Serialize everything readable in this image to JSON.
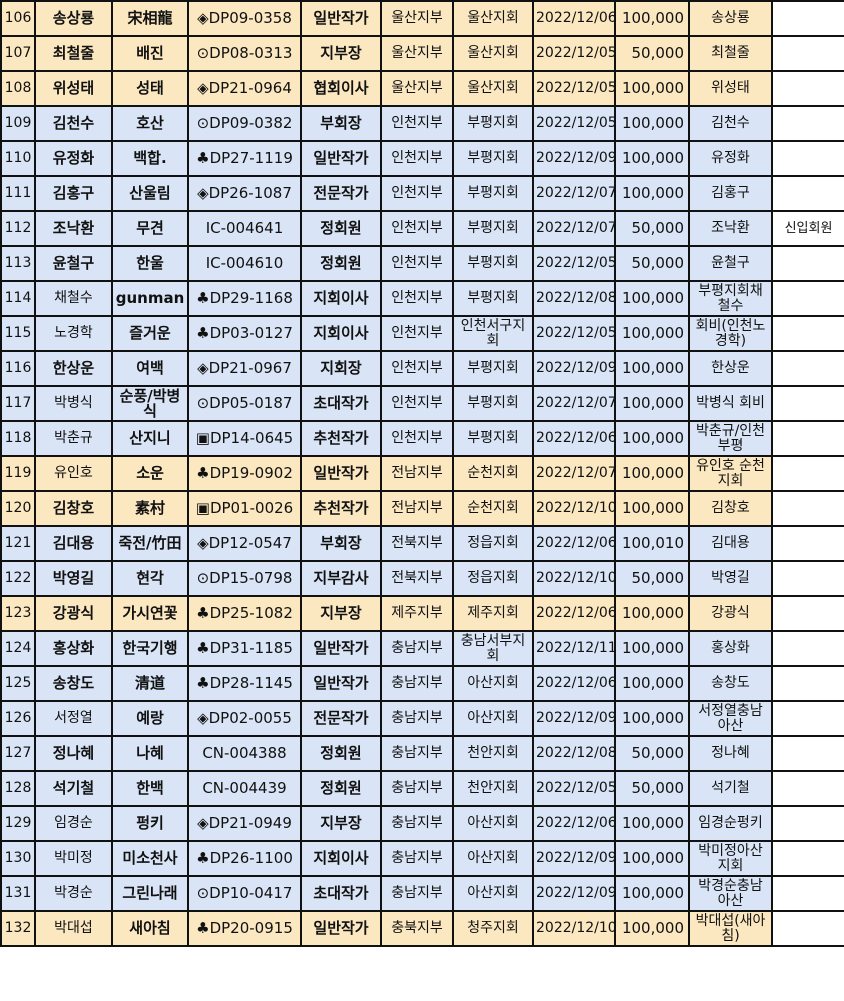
{
  "colors": {
    "yellow": "#fce8c0",
    "blue": "#d9e5f6",
    "note": "#ffffff"
  },
  "rows": [
    {
      "no": "106",
      "name": "송상룡",
      "pen": "宋相龍",
      "code": "◈DP09-0358",
      "rank": "일반작가",
      "branch": "울산지부",
      "chapter": "울산지회",
      "date": "2022/12/06",
      "amount": "100,000",
      "depositor": "송상룡",
      "note": "",
      "color": "yellow",
      "bold": true
    },
    {
      "no": "107",
      "name": "최철줄",
      "pen": "배진",
      "code": "⊙DP08-0313",
      "rank": "지부장",
      "branch": "울산지부",
      "chapter": "울산지회",
      "date": "2022/12/05",
      "amount": "50,000",
      "depositor": "최철줄",
      "note": "",
      "color": "yellow",
      "bold": true
    },
    {
      "no": "108",
      "name": "위성태",
      "pen": "성태",
      "code": "◈DP21-0964",
      "rank": "협회이사",
      "branch": "울산지부",
      "chapter": "울산지회",
      "date": "2022/12/05",
      "amount": "100,000",
      "depositor": "위성태",
      "note": "",
      "color": "yellow",
      "bold": true
    },
    {
      "no": "109",
      "name": "김천수",
      "pen": "호산",
      "code": "⊙DP09-0382",
      "rank": "부회장",
      "branch": "인천지부",
      "chapter": "부평지회",
      "date": "2022/12/05",
      "amount": "100,000",
      "depositor": "김천수",
      "note": "",
      "color": "blue",
      "bold": true
    },
    {
      "no": "110",
      "name": "유정화",
      "pen": "백합.",
      "code": "♣DP27-1119",
      "rank": "일반작가",
      "branch": "인천지부",
      "chapter": "부평지회",
      "date": "2022/12/09",
      "amount": "100,000",
      "depositor": "유정화",
      "note": "",
      "color": "blue",
      "bold": true
    },
    {
      "no": "111",
      "name": "김홍구",
      "pen": "산울림",
      "code": "◈DP26-1087",
      "rank": "전문작가",
      "branch": "인천지부",
      "chapter": "부평지회",
      "date": "2022/12/07",
      "amount": "100,000",
      "depositor": "김홍구",
      "note": "",
      "color": "blue",
      "bold": true
    },
    {
      "no": "112",
      "name": "조낙환",
      "pen": "무견",
      "code": "IC-004641",
      "rank": "정회원",
      "branch": "인천지부",
      "chapter": "부평지회",
      "date": "2022/12/07",
      "amount": "50,000",
      "depositor": "조낙환",
      "note": "신입회원",
      "color": "blue",
      "bold": true
    },
    {
      "no": "113",
      "name": "윤철구",
      "pen": "한울",
      "code": "IC-004610",
      "rank": "정회원",
      "branch": "인천지부",
      "chapter": "부평지회",
      "date": "2022/12/05",
      "amount": "50,000",
      "depositor": "윤철구",
      "note": "",
      "color": "blue",
      "bold": true
    },
    {
      "no": "114",
      "name": "채철수",
      "pen": "gunman",
      "code": "♣DP29-1168",
      "rank": "지회이사",
      "branch": "인천지부",
      "chapter": "부평지회",
      "date": "2022/12/08",
      "amount": "100,000",
      "depositor": "부평지회채철수",
      "note": "",
      "color": "blue",
      "bold": false
    },
    {
      "no": "115",
      "name": "노경학",
      "pen": "즐거운",
      "code": "♣DP03-0127",
      "rank": "지회이사",
      "branch": "인천지부",
      "chapter": "인천서구지회",
      "date": "2022/12/05",
      "amount": "100,000",
      "depositor": "회비(인천노경학)",
      "note": "",
      "color": "blue",
      "bold": false
    },
    {
      "no": "116",
      "name": "한상운",
      "pen": "여백",
      "code": "◈DP21-0967",
      "rank": "지회장",
      "branch": "인천지부",
      "chapter": "부평지회",
      "date": "2022/12/09",
      "amount": "100,000",
      "depositor": "한상운",
      "note": "",
      "color": "blue",
      "bold": true
    },
    {
      "no": "117",
      "name": "박병식",
      "pen": "순풍/박병식",
      "code": "⊙DP05-0187",
      "rank": "초대작가",
      "branch": "인천지부",
      "chapter": "부평지회",
      "date": "2022/12/07",
      "amount": "100,000",
      "depositor": "박병식 회비",
      "note": "",
      "color": "blue",
      "bold": false
    },
    {
      "no": "118",
      "name": "박춘규",
      "pen": "산지니",
      "code": "▣DP14-0645",
      "rank": "추천작가",
      "branch": "인천지부",
      "chapter": "부평지회",
      "date": "2022/12/06",
      "amount": "100,000",
      "depositor": "박춘규/인천부평",
      "note": "",
      "color": "blue",
      "bold": false
    },
    {
      "no": "119",
      "name": "유인호",
      "pen": "소운",
      "code": "♣DP19-0902",
      "rank": "일반작가",
      "branch": "전남지부",
      "chapter": "순천지회",
      "date": "2022/12/07",
      "amount": "100,000",
      "depositor": "유인호 순천지회",
      "note": "",
      "color": "yellow",
      "bold": false
    },
    {
      "no": "120",
      "name": "김창호",
      "pen": "素村",
      "code": "▣DP01-0026",
      "rank": "추천작가",
      "branch": "전남지부",
      "chapter": "순천지회",
      "date": "2022/12/10",
      "amount": "100,000",
      "depositor": "김창호",
      "note": "",
      "color": "yellow",
      "bold": true
    },
    {
      "no": "121",
      "name": "김대용",
      "pen": "죽전/竹田",
      "code": "◈DP12-0547",
      "rank": "부회장",
      "branch": "전북지부",
      "chapter": "정읍지회",
      "date": "2022/12/06",
      "amount": "100,010",
      "depositor": "김대용",
      "note": "",
      "color": "blue",
      "bold": true
    },
    {
      "no": "122",
      "name": "박영길",
      "pen": "현각",
      "code": "⊙DP15-0798",
      "rank": "지부감사",
      "branch": "전북지부",
      "chapter": "정읍지회",
      "date": "2022/12/10",
      "amount": "50,000",
      "depositor": "박영길",
      "note": "",
      "color": "blue",
      "bold": true
    },
    {
      "no": "123",
      "name": "강광식",
      "pen": "가시연꽃",
      "code": "♣DP25-1082",
      "rank": "지부장",
      "branch": "제주지부",
      "chapter": "제주지회",
      "date": "2022/12/06",
      "amount": "100,000",
      "depositor": "강광식",
      "note": "",
      "color": "yellow",
      "bold": true
    },
    {
      "no": "124",
      "name": "홍상화",
      "pen": "한국기행",
      "code": "♣DP31-1185",
      "rank": "일반작가",
      "branch": "충남지부",
      "chapter": "충남서부지회",
      "date": "2022/12/11",
      "amount": "100,000",
      "depositor": "홍상화",
      "note": "",
      "color": "blue",
      "bold": true
    },
    {
      "no": "125",
      "name": "송창도",
      "pen": "清道",
      "code": "♣DP28-1145",
      "rank": "일반작가",
      "branch": "충남지부",
      "chapter": "아산지회",
      "date": "2022/12/06",
      "amount": "100,000",
      "depositor": "송창도",
      "note": "",
      "color": "blue",
      "bold": true
    },
    {
      "no": "126",
      "name": "서정열",
      "pen": "예랑",
      "code": "◈DP02-0055",
      "rank": "전문작가",
      "branch": "충남지부",
      "chapter": "아산지회",
      "date": "2022/12/09",
      "amount": "100,000",
      "depositor": "서정열충남아산",
      "note": "",
      "color": "blue",
      "bold": false
    },
    {
      "no": "127",
      "name": "정나혜",
      "pen": "나혜",
      "code": "CN-004388",
      "rank": "정회원",
      "branch": "충남지부",
      "chapter": "천안지회",
      "date": "2022/12/08",
      "amount": "50,000",
      "depositor": "정나혜",
      "note": "",
      "color": "blue",
      "bold": true
    },
    {
      "no": "128",
      "name": "석기철",
      "pen": "한백",
      "code": "CN-004439",
      "rank": "정회원",
      "branch": "충남지부",
      "chapter": "천안지회",
      "date": "2022/12/05",
      "amount": "50,000",
      "depositor": "석기철",
      "note": "",
      "color": "blue",
      "bold": true
    },
    {
      "no": "129",
      "name": "임경순",
      "pen": "펑키",
      "code": "◈DP21-0949",
      "rank": "지부장",
      "branch": "충남지부",
      "chapter": "아산지회",
      "date": "2022/12/06",
      "amount": "100,000",
      "depositor": "임경순펑키",
      "note": "",
      "color": "blue",
      "bold": false
    },
    {
      "no": "130",
      "name": "박미정",
      "pen": "미소천사",
      "code": "♣DP26-1100",
      "rank": "지회이사",
      "branch": "충남지부",
      "chapter": "아산지회",
      "date": "2022/12/09",
      "amount": "100,000",
      "depositor": "박미정아산지회",
      "note": "",
      "color": "blue",
      "bold": false
    },
    {
      "no": "131",
      "name": "박경순",
      "pen": "그린나래",
      "code": "⊙DP10-0417",
      "rank": "초대작가",
      "branch": "충남지부",
      "chapter": "아산지회",
      "date": "2022/12/09",
      "amount": "100,000",
      "depositor": "박경순충남아산",
      "note": "",
      "color": "blue",
      "bold": false
    },
    {
      "no": "132",
      "name": "박대섭",
      "pen": "새아침",
      "code": "♣DP20-0915",
      "rank": "일반작가",
      "branch": "충북지부",
      "chapter": "청주지회",
      "date": "2022/12/10",
      "amount": "100,000",
      "depositor": "박대섭(새아침)",
      "note": "",
      "color": "yellow",
      "bold": false
    }
  ]
}
